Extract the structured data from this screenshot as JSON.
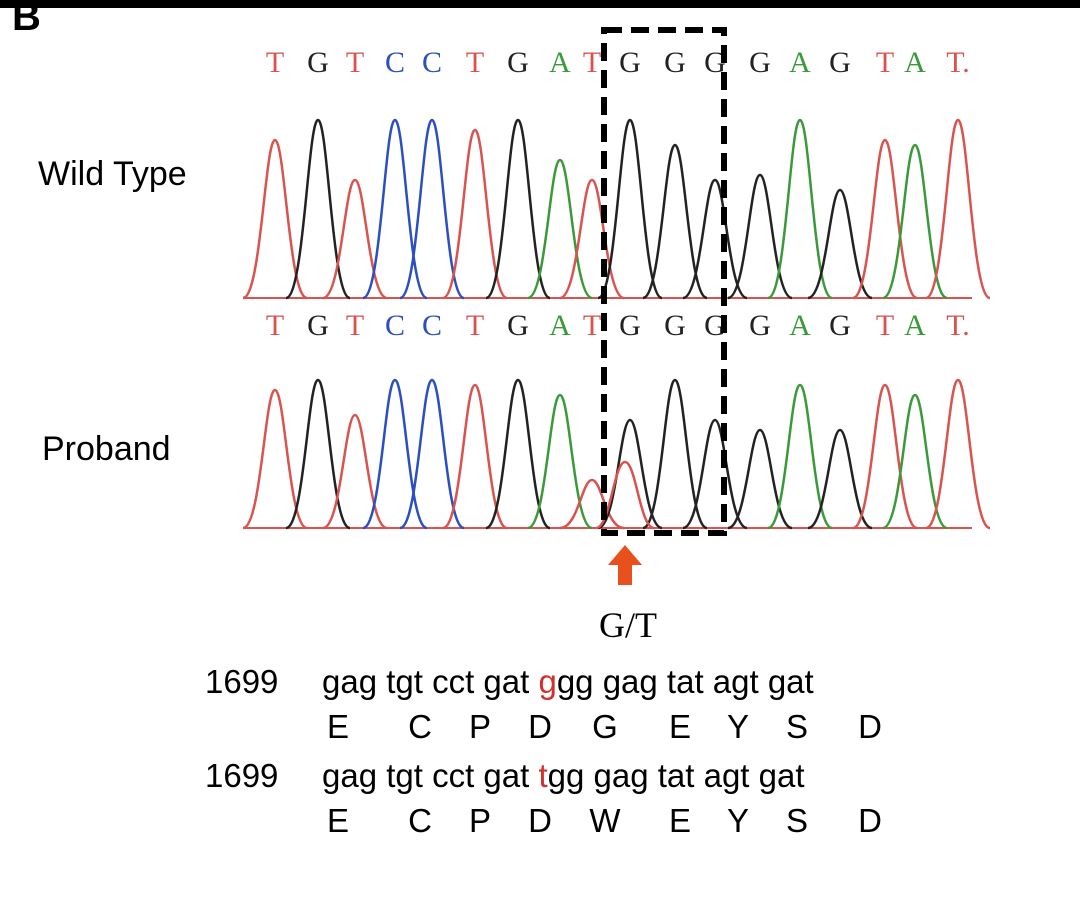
{
  "panel_label": "B",
  "tracks": [
    {
      "label": "Wild Type",
      "bases": [
        "T",
        "G",
        "T",
        "C",
        "C",
        "T",
        "G",
        "A",
        "T",
        "G",
        "G",
        "G",
        "G",
        "A",
        "G",
        "T",
        "A",
        "T."
      ]
    },
    {
      "label": "Proband",
      "bases": [
        "T",
        "G",
        "T",
        "C",
        "C",
        "T",
        "G",
        "A",
        "T",
        "G",
        "G",
        "G",
        "G",
        "A",
        "G",
        "T",
        "A",
        "T."
      ]
    }
  ],
  "mutation": "G/T",
  "sequences": [
    {
      "position": "1699",
      "codons_before": "gag tgt cct gat ",
      "mutant_base": "g",
      "codons_after": "gg gag tat agt gat",
      "amino_acids": [
        "E",
        "C",
        "P",
        "D",
        "G",
        "E",
        "Y",
        "S",
        "D"
      ],
      "mutant_index": 4
    },
    {
      "position": "1699",
      "codons_before": "gag tgt cct gat ",
      "mutant_base": "t",
      "codons_after": "gg gag tat agt gat",
      "amino_acids": [
        "E",
        "C",
        "P",
        "D",
        "W",
        "E",
        "Y",
        "S",
        "D"
      ],
      "mutant_index": 4
    }
  ]
}
